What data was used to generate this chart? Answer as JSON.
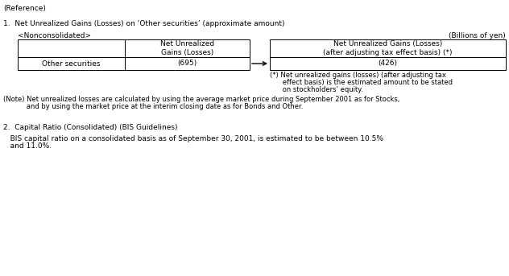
{
  "reference_text": "(Reference)",
  "section1_title": "1.  Net Unrealized Gains (Losses) on ‘Other securities’ (approximate amount)",
  "nonconsolidated_label": "<Nonconsolidated>",
  "billions_label": "(Billions of yen)",
  "col1_header": "Net Unrealized\nGains (Losses)",
  "col2_header": "Net Unrealized Gains (Losses)\n(after adjusting tax effect basis) (*)",
  "row_label": "Other securities",
  "val1": "(695)",
  "val2": "(426)",
  "footnote_line1": "(*) Net unrealized gains (losses) (after adjusting tax",
  "footnote_line2": "      effect basis) is the estimated amount to be stated",
  "footnote_line3": "      on stockholders’ equity.",
  "note_line1": "(Note) Net unrealized losses are calculated by using the average market price during September 2001 as for Stocks,",
  "note_line2": "           and by using the market price at the interim closing date as for Bonds and Other.",
  "section2_title": "2.  Capital Ratio (Consolidated) (BIS Guidelines)",
  "section2_line1": "   BIS capital ratio on a consolidated basis as of September 30, 2001, is estimated to be between 10.5%",
  "section2_line2": "   and 11.0%.",
  "bg_color": "#ffffff",
  "text_color": "#000000",
  "font_size": 6.5
}
